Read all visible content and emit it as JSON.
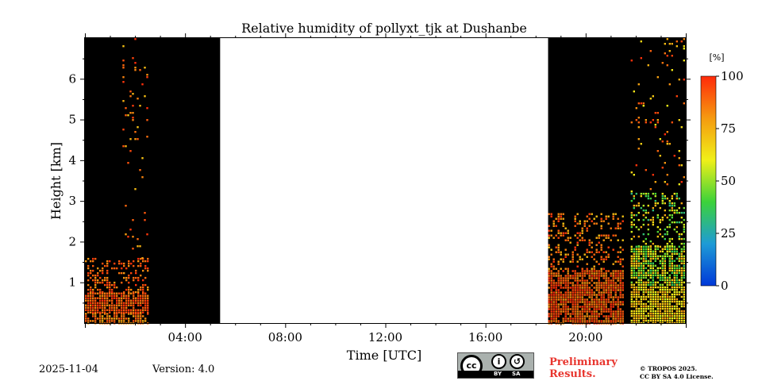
{
  "chart_data": {
    "type": "heatmap",
    "title": "Relative humidity of pollyxt_tjk at Dushanbe",
    "xlabel": "Time [UTC]",
    "ylabel": "Height [km]",
    "xlim": [
      0,
      24
    ],
    "ylim": [
      0,
      7
    ],
    "x_ticks": [
      {
        "value": 4,
        "label": "04:00"
      },
      {
        "value": 8,
        "label": "08:00"
      },
      {
        "value": 12,
        "label": "12:00"
      },
      {
        "value": 16,
        "label": "16:00"
      },
      {
        "value": 20,
        "label": "20:00"
      }
    ],
    "y_ticks": [
      {
        "value": 1,
        "label": "1"
      },
      {
        "value": 2,
        "label": "2"
      },
      {
        "value": 3,
        "label": "3"
      },
      {
        "value": 4,
        "label": "4"
      },
      {
        "value": 5,
        "label": "5"
      },
      {
        "value": 6,
        "label": "6"
      }
    ],
    "colorbar": {
      "unit": "[%]",
      "range": [
        0,
        100
      ],
      "ticks": [
        {
          "value": 0,
          "label": "0"
        },
        {
          "value": 25,
          "label": "25"
        },
        {
          "value": 50,
          "label": "50"
        },
        {
          "value": 75,
          "label": "75"
        },
        {
          "value": 100,
          "label": "100"
        }
      ],
      "colormap": [
        "#0038d8",
        "#1e9bd6",
        "#3cd23a",
        "#f0f018",
        "#f59a10",
        "#ff2a0a"
      ]
    },
    "background_color": "#000000",
    "observation_periods": [
      {
        "start": 0.0,
        "end": 5.4
      },
      {
        "start": 18.5,
        "end": 24.0
      }
    ],
    "humidity_regions": [
      {
        "start": 0.0,
        "end": 2.5,
        "base": 0.0,
        "top": 0.25,
        "rh_min": 75,
        "rh_max": 95,
        "density": 0.7
      },
      {
        "start": 0.0,
        "end": 2.5,
        "base": 0.25,
        "top": 0.75,
        "rh_min": 82,
        "rh_max": 100,
        "density": 0.85
      },
      {
        "start": 0.0,
        "end": 2.5,
        "base": 0.75,
        "top": 1.6,
        "rh_min": 80,
        "rh_max": 100,
        "density": 0.35
      },
      {
        "start": 1.5,
        "end": 2.5,
        "base": 1.6,
        "top": 7.0,
        "rh_min": 70,
        "rh_max": 100,
        "density": 0.05
      },
      {
        "start": 18.5,
        "end": 21.5,
        "base": 0.0,
        "top": 1.3,
        "rh_min": 80,
        "rh_max": 100,
        "density": 0.85
      },
      {
        "start": 18.5,
        "end": 21.5,
        "base": 1.3,
        "top": 2.7,
        "rh_min": 70,
        "rh_max": 100,
        "density": 0.25
      },
      {
        "start": 21.8,
        "end": 24.0,
        "base": 0.0,
        "top": 0.9,
        "rh_min": 55,
        "rh_max": 80,
        "density": 0.9
      },
      {
        "start": 21.8,
        "end": 24.0,
        "base": 0.9,
        "top": 1.9,
        "rh_min": 35,
        "rh_max": 75,
        "density": 0.8
      },
      {
        "start": 21.8,
        "end": 24.0,
        "base": 1.9,
        "top": 3.2,
        "rh_min": 30,
        "rh_max": 80,
        "density": 0.3
      },
      {
        "start": 21.8,
        "end": 24.0,
        "base": 3.2,
        "top": 7.0,
        "rh_min": 60,
        "rh_max": 100,
        "density": 0.06
      }
    ]
  },
  "footer": {
    "date": "2025-11-04",
    "version": "Version: 4.0",
    "preliminary_line1": "Preliminary",
    "preliminary_line2": "Results.",
    "copyright_line1": "© TROPOS 2025.",
    "copyright_line2": "CC BY SA 4.0 License.",
    "license_badge": {
      "cc": "cc",
      "by": "BY",
      "sa": "SA",
      "by_glyph": "i",
      "sa_glyph": "↺"
    }
  }
}
